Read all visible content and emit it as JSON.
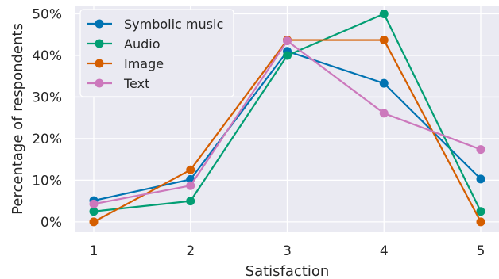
{
  "chart_data": {
    "type": "line",
    "xlabel": "Satisfaction",
    "ylabel": "Percentage of respondents",
    "x": [
      1,
      2,
      3,
      4,
      5
    ],
    "xticks": [
      "1",
      "2",
      "3",
      "4",
      "5"
    ],
    "ylim": [
      -0.025,
      0.52
    ],
    "yticks": [
      0,
      0.1,
      0.2,
      0.3,
      0.4,
      0.5
    ],
    "ytick_labels": [
      "0%",
      "10%",
      "20%",
      "30%",
      "40%",
      "50%"
    ],
    "grid": true,
    "legend_position": "top-left",
    "background": "#eaeaf2",
    "series": [
      {
        "name": "Symbolic music",
        "color": "#0173b2",
        "values": [
          0.051,
          0.102,
          0.41,
          0.333,
          0.103
        ]
      },
      {
        "name": "Audio",
        "color": "#029e73",
        "values": [
          0.025,
          0.05,
          0.4,
          0.5,
          0.025
        ]
      },
      {
        "name": "Image",
        "color": "#d55e00",
        "values": [
          0.0,
          0.125,
          0.437,
          0.437,
          0.0
        ]
      },
      {
        "name": "Text",
        "color": "#cc78bc",
        "values": [
          0.043,
          0.087,
          0.435,
          0.261,
          0.174
        ]
      }
    ]
  }
}
